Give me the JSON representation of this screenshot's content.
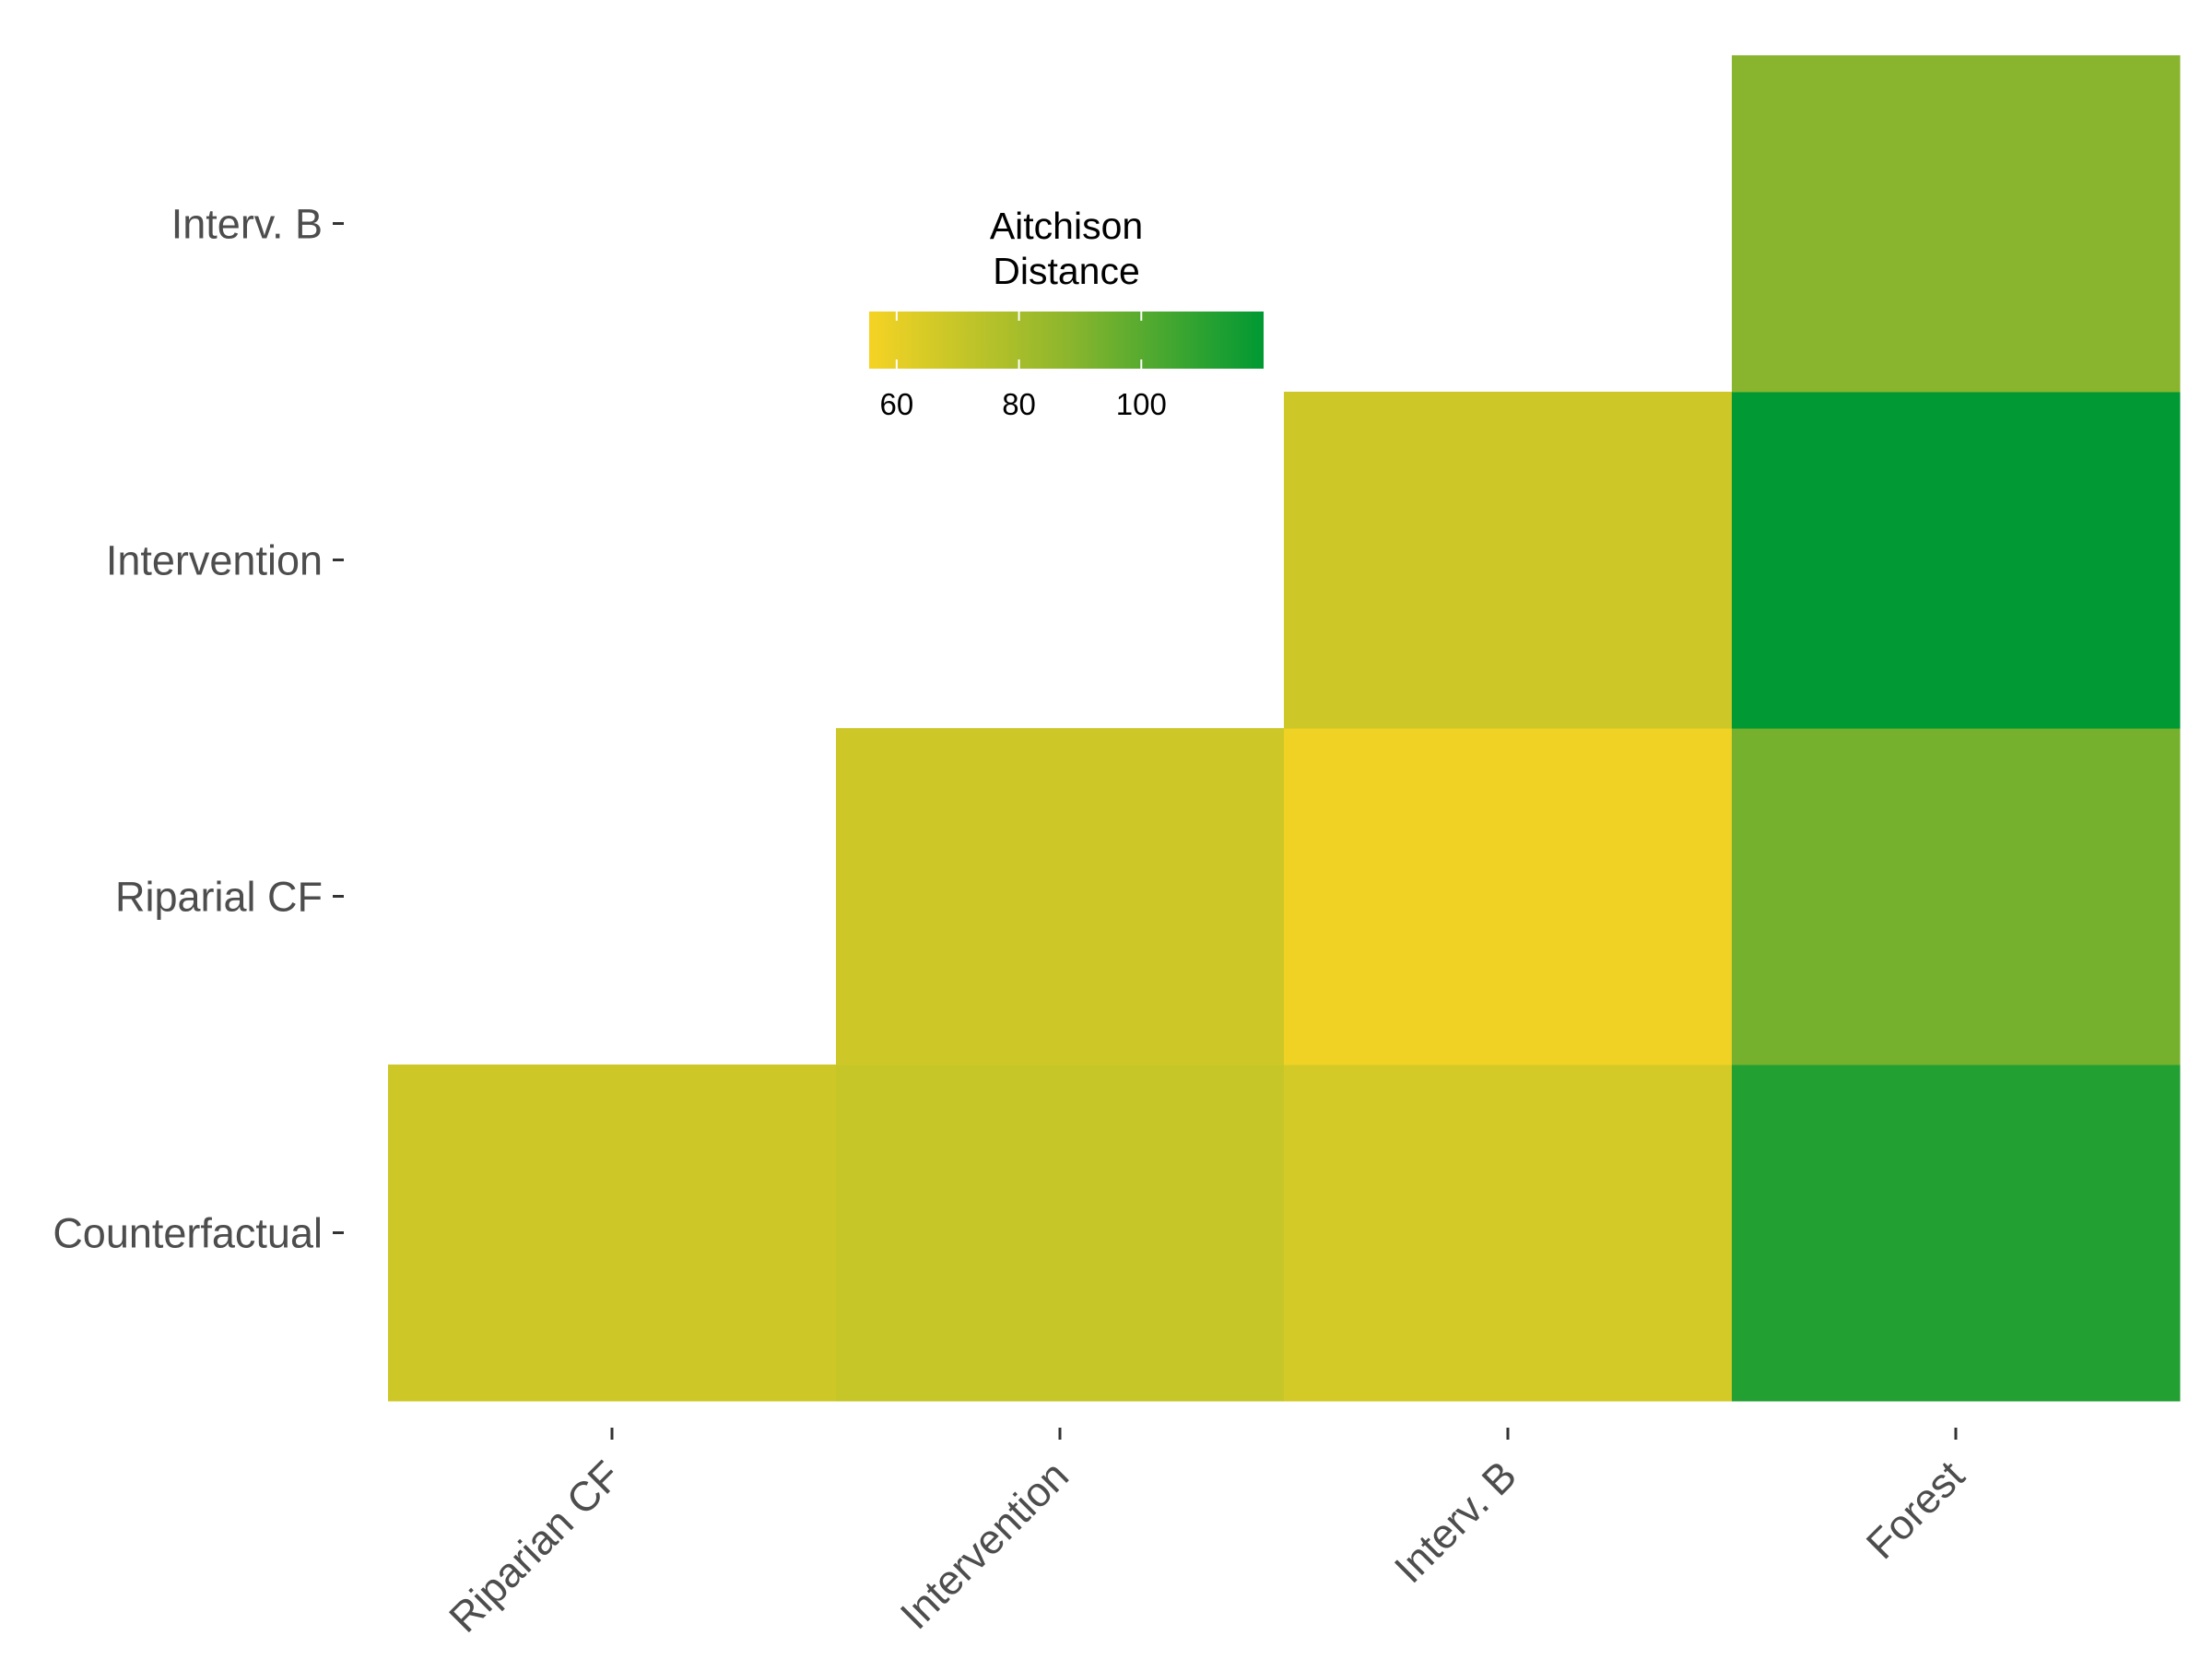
{
  "chart_data": {
    "type": "heatmap",
    "title": "",
    "xlabel": "",
    "ylabel": "",
    "x_categories": [
      "Riparian CF",
      "Intervention",
      "Interv. B",
      "Forest"
    ],
    "y_categories": [
      "Counterfactual",
      "Riparial CF",
      "Intervention",
      "Interv. B"
    ],
    "cells": [
      {
        "x": "Riparian CF",
        "y": "Counterfactual",
        "value": 68
      },
      {
        "x": "Intervention",
        "y": "Counterfactual",
        "value": 70
      },
      {
        "x": "Interv. B",
        "y": "Counterfactual",
        "value": 66
      },
      {
        "x": "Forest",
        "y": "Counterfactual",
        "value": 112
      },
      {
        "x": "Intervention",
        "y": "Riparial CF",
        "value": 68
      },
      {
        "x": "Interv. B",
        "y": "Riparial CF",
        "value": 57
      },
      {
        "x": "Forest",
        "y": "Riparial CF",
        "value": 93
      },
      {
        "x": "Interv. B",
        "y": "Intervention",
        "value": 68
      },
      {
        "x": "Forest",
        "y": "Intervention",
        "value": 120
      },
      {
        "x": "Forest",
        "y": "Interv. B",
        "value": 89
      }
    ],
    "grid": false,
    "legend": {
      "title_lines": [
        "Aitchison",
        "Distance"
      ],
      "placement": "top-center",
      "range": [
        55.5,
        120
      ],
      "ticks": [
        60,
        80,
        100
      ],
      "low_color": "#F5D324",
      "mid_color": "#8DB62D",
      "high_color": "#009933"
    }
  }
}
